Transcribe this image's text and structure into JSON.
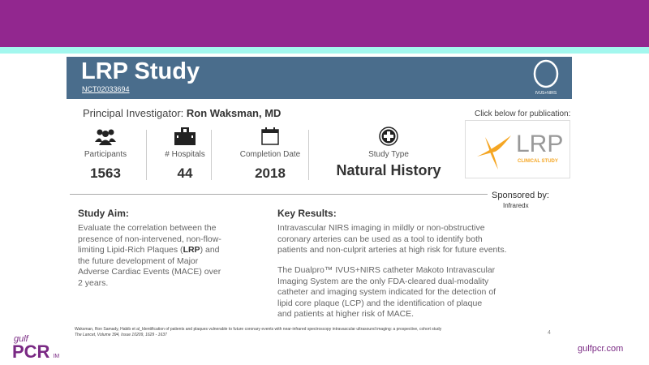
{
  "header": {
    "title": "LRP Study",
    "nct": "NCT02033694",
    "logo_text": "IVUS+NIRS"
  },
  "pi": {
    "label": "Principal Investigator:",
    "name": "Ron Waksman, MD"
  },
  "stats": [
    {
      "icon": "people-icon",
      "label": "Participants",
      "value": "1563"
    },
    {
      "icon": "hospital-icon",
      "label": "# Hospitals",
      "value": "44"
    },
    {
      "icon": "calendar-icon",
      "label": "Completion Date",
      "value": "2018"
    },
    {
      "icon": "plus-circle-icon",
      "label": "Study Type",
      "value": "Natural History"
    }
  ],
  "publication": {
    "prompt": "Click below for publication:",
    "logo_text": "LRP",
    "logo_sub": "CLINICAL STUDY"
  },
  "sponsor": {
    "label": "Sponsored by:",
    "name": "Infraredx"
  },
  "aim": {
    "heading": "Study Aim:",
    "text_before": "Evaluate the correlation between the presence of non-intervened, non-flow-limiting Lipid-Rich Plaques (",
    "bold": "LRP",
    "text_after": ") and the future development of Major Adverse Cardiac Events (MACE) over 2 years."
  },
  "results": {
    "heading": "Key Results:",
    "p1": "Intravascular NIRS imaging in mildly or non-obstructive coronary arteries can be used as a tool to identify both patients and non-culprit arteries at high risk for future events.",
    "p2": "The Dualpro™ IVUS+NIRS catheter Makoto Intravascular Imaging System are the only FDA-cleared dual-modality catheter and imaging system indicated for the detection of lipid core plaque (LCP) and the identification of plaque and patients at higher risk of MACE."
  },
  "citation": {
    "line1": "Waksman, Ron Samady, Habib et al_Identification of patients and plaques vulnerable to future coronary events with near-infrared spectroscopy intravascular ultrasound imaging: a prospective, cohort study",
    "line2": "The Lancet, Volume 394, Issue 10209, 1629 - 1637"
  },
  "page_number": "4",
  "footer": {
    "logo_top": "gulf",
    "logo_main": "PCR",
    "logo_suffix": "IM",
    "site": "gulfpcr.com"
  },
  "colors": {
    "brand_purple": "#92278f",
    "cyan": "#a3f7ee",
    "header_blue": "#4a6d8c",
    "lrp_orange": "#f5a623"
  }
}
